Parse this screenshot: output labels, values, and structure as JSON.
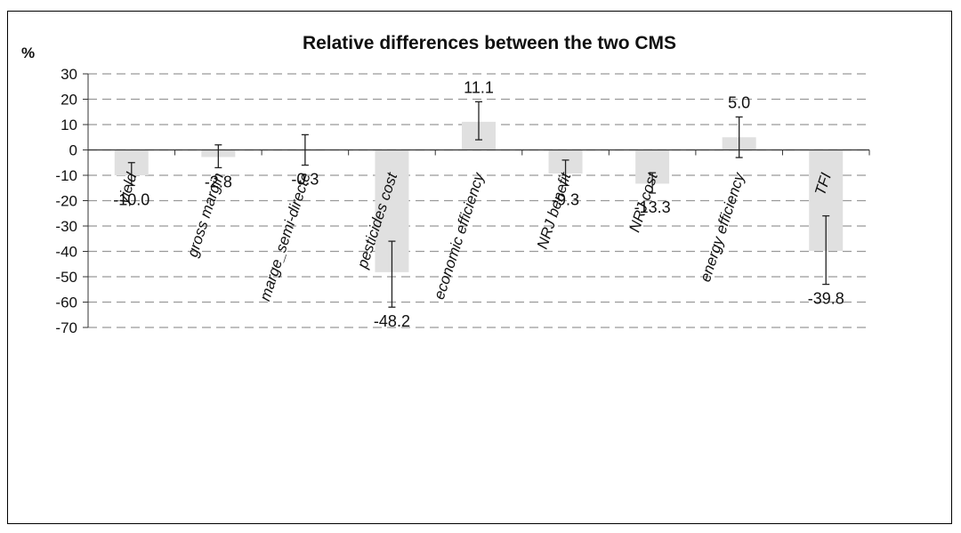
{
  "chart_data": {
    "type": "bar",
    "title": "Relative differences between the two CMS",
    "ylabel": "%",
    "xlabel": "",
    "ylim": [
      -70,
      30
    ],
    "yticks": [
      30,
      20,
      10,
      0,
      -10,
      -20,
      -30,
      -40,
      -50,
      -60,
      -70
    ],
    "grid": true,
    "legend": "none",
    "categories": [
      "yield",
      "gross margin",
      "marge_semi-directe",
      "pesticides cost",
      "economic efficiency",
      "NRJ benefit",
      "NRJ cost",
      "energy efficiency",
      "TFI"
    ],
    "values": [
      -10.0,
      -2.8,
      -0.3,
      -48.2,
      11.1,
      -9.3,
      -13.3,
      5.0,
      -39.8
    ],
    "data_labels": [
      "-10.0",
      "-2.8",
      "-0.3",
      "-48.2",
      "11.1",
      "-9.3",
      "-13.3",
      "5.0",
      "-39.8"
    ],
    "error_low": [
      -14,
      -7,
      -6,
      -62,
      4,
      -14,
      -17,
      -3,
      -53
    ],
    "error_high": [
      -5,
      2,
      6,
      -36,
      19,
      -4,
      -9,
      13,
      -26
    ],
    "colors": {
      "bar": "#e0e0e0",
      "grid": "#999999",
      "axis": "#333333",
      "error": "#222222"
    }
  }
}
